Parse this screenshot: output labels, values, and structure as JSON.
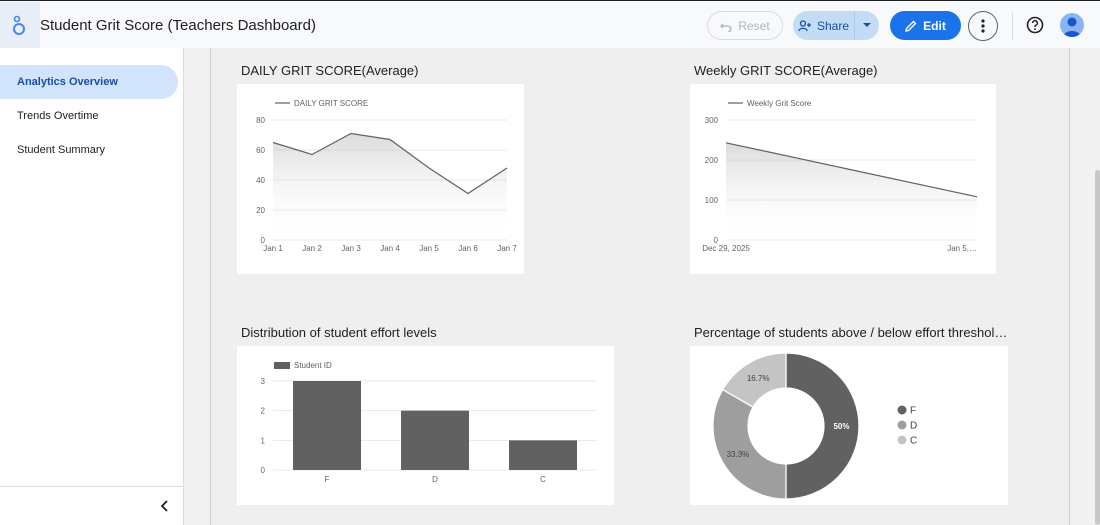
{
  "header": {
    "title": "Student Grit Score (Teachers Dashboard)",
    "reset_label": "Reset",
    "share_label": "Share",
    "edit_label": "Edit"
  },
  "sidebar": {
    "items": [
      {
        "label": "Analytics Overview",
        "active": true
      },
      {
        "label": "Trends Overtime",
        "active": false
      },
      {
        "label": "Student Summary",
        "active": false
      }
    ]
  },
  "colors": {
    "accent": "#1a73e8",
    "series_gray": "#616161",
    "nav_active_bg": "#d2e3fc"
  },
  "chart_data": [
    {
      "type": "line",
      "title": "DAILY GRIT SCORE(Average)",
      "legend": "DAILY GRIT SCORE",
      "legend_position": "top-left",
      "x": [
        "Jan 1",
        "Jan 2",
        "Jan 3",
        "Jan 4",
        "Jan 5",
        "Jan 6",
        "Jan 7"
      ],
      "series": [
        {
          "name": "DAILY GRIT SCORE",
          "values": [
            65,
            57,
            71,
            67,
            48,
            31,
            48
          ]
        }
      ],
      "ylim": [
        0,
        80
      ],
      "yticks": [
        "0",
        "20",
        "40",
        "60",
        "80"
      ],
      "grid": true
    },
    {
      "type": "line",
      "title": "Weekly GRIT SCORE(Average)",
      "legend": "Weekly Grit Score",
      "legend_position": "top-left",
      "x": [
        "Dec 29, 2025",
        "Jan 5,…"
      ],
      "series": [
        {
          "name": "Weekly Grit Score",
          "values": [
            243,
            108
          ]
        }
      ],
      "ylim": [
        0,
        300
      ],
      "yticks": [
        "0",
        "100",
        "200",
        "300"
      ],
      "grid": true
    },
    {
      "type": "bar",
      "title": "Distribution of student effort levels",
      "legend": "Student ID",
      "legend_position": "top-left",
      "categories": [
        "F",
        "D",
        "C"
      ],
      "series": [
        {
          "name": "Student ID",
          "values": [
            3,
            2,
            1
          ]
        }
      ],
      "ylim": [
        0,
        3
      ],
      "yticks": [
        "0",
        "1",
        "2",
        "3"
      ],
      "grid": true
    },
    {
      "type": "pie",
      "title": "Percentage of students above / below effort threshol…",
      "legend_position": "right",
      "slices": [
        {
          "label": "F",
          "value": 50,
          "display": "50%",
          "color": "#616161"
        },
        {
          "label": "D",
          "value": 33.3,
          "display": "33.3%",
          "color": "#9e9e9e"
        },
        {
          "label": "C",
          "value": 16.7,
          "display": "16.7%",
          "color": "#c4c4c4"
        }
      ]
    }
  ]
}
